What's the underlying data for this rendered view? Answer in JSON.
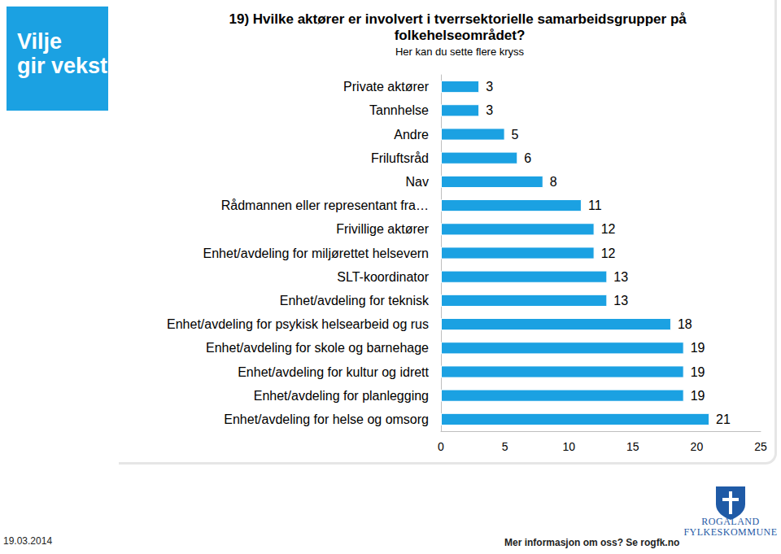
{
  "chart_data": {
    "type": "bar",
    "orientation": "horizontal",
    "title": "19) Hvilke aktører er involvert i tverrsektorielle samarbeidsgrupper på folkehelseområdet?",
    "subtitle": "Her kan du sette flere kryss",
    "categories": [
      "Private aktører",
      "Tannhelse",
      "Andre",
      "Friluftsråd",
      "Nav",
      "Rådmannen eller representant fra…",
      "Frivillige aktører",
      "Enhet/avdeling for miljørettet helsevern",
      "SLT-koordinator",
      "Enhet/avdeling for teknisk",
      "Enhet/avdeling for psykisk helsearbeid og rus",
      "Enhet/avdeling for skole og barnehage",
      "Enhet/avdeling for kultur og idrett",
      "Enhet/avdeling for planlegging",
      "Enhet/avdeling for helse og omsorg"
    ],
    "values": [
      3,
      3,
      5,
      6,
      8,
      11,
      12,
      12,
      13,
      13,
      18,
      19,
      19,
      19,
      21
    ],
    "color": "#1ba1e2",
    "xlim": [
      0,
      25
    ],
    "xticks": [
      0,
      5,
      10,
      15,
      20,
      25
    ],
    "grid": false,
    "data_labels": true
  },
  "slide": {
    "logo": [
      "Vilje",
      "gir vekst"
    ],
    "date": "19.03.2014",
    "footer": "Mer informasjon om oss? Se rogfk.no",
    "organization": [
      "ROGALAND",
      "FYLKESKOMMUNE"
    ]
  }
}
